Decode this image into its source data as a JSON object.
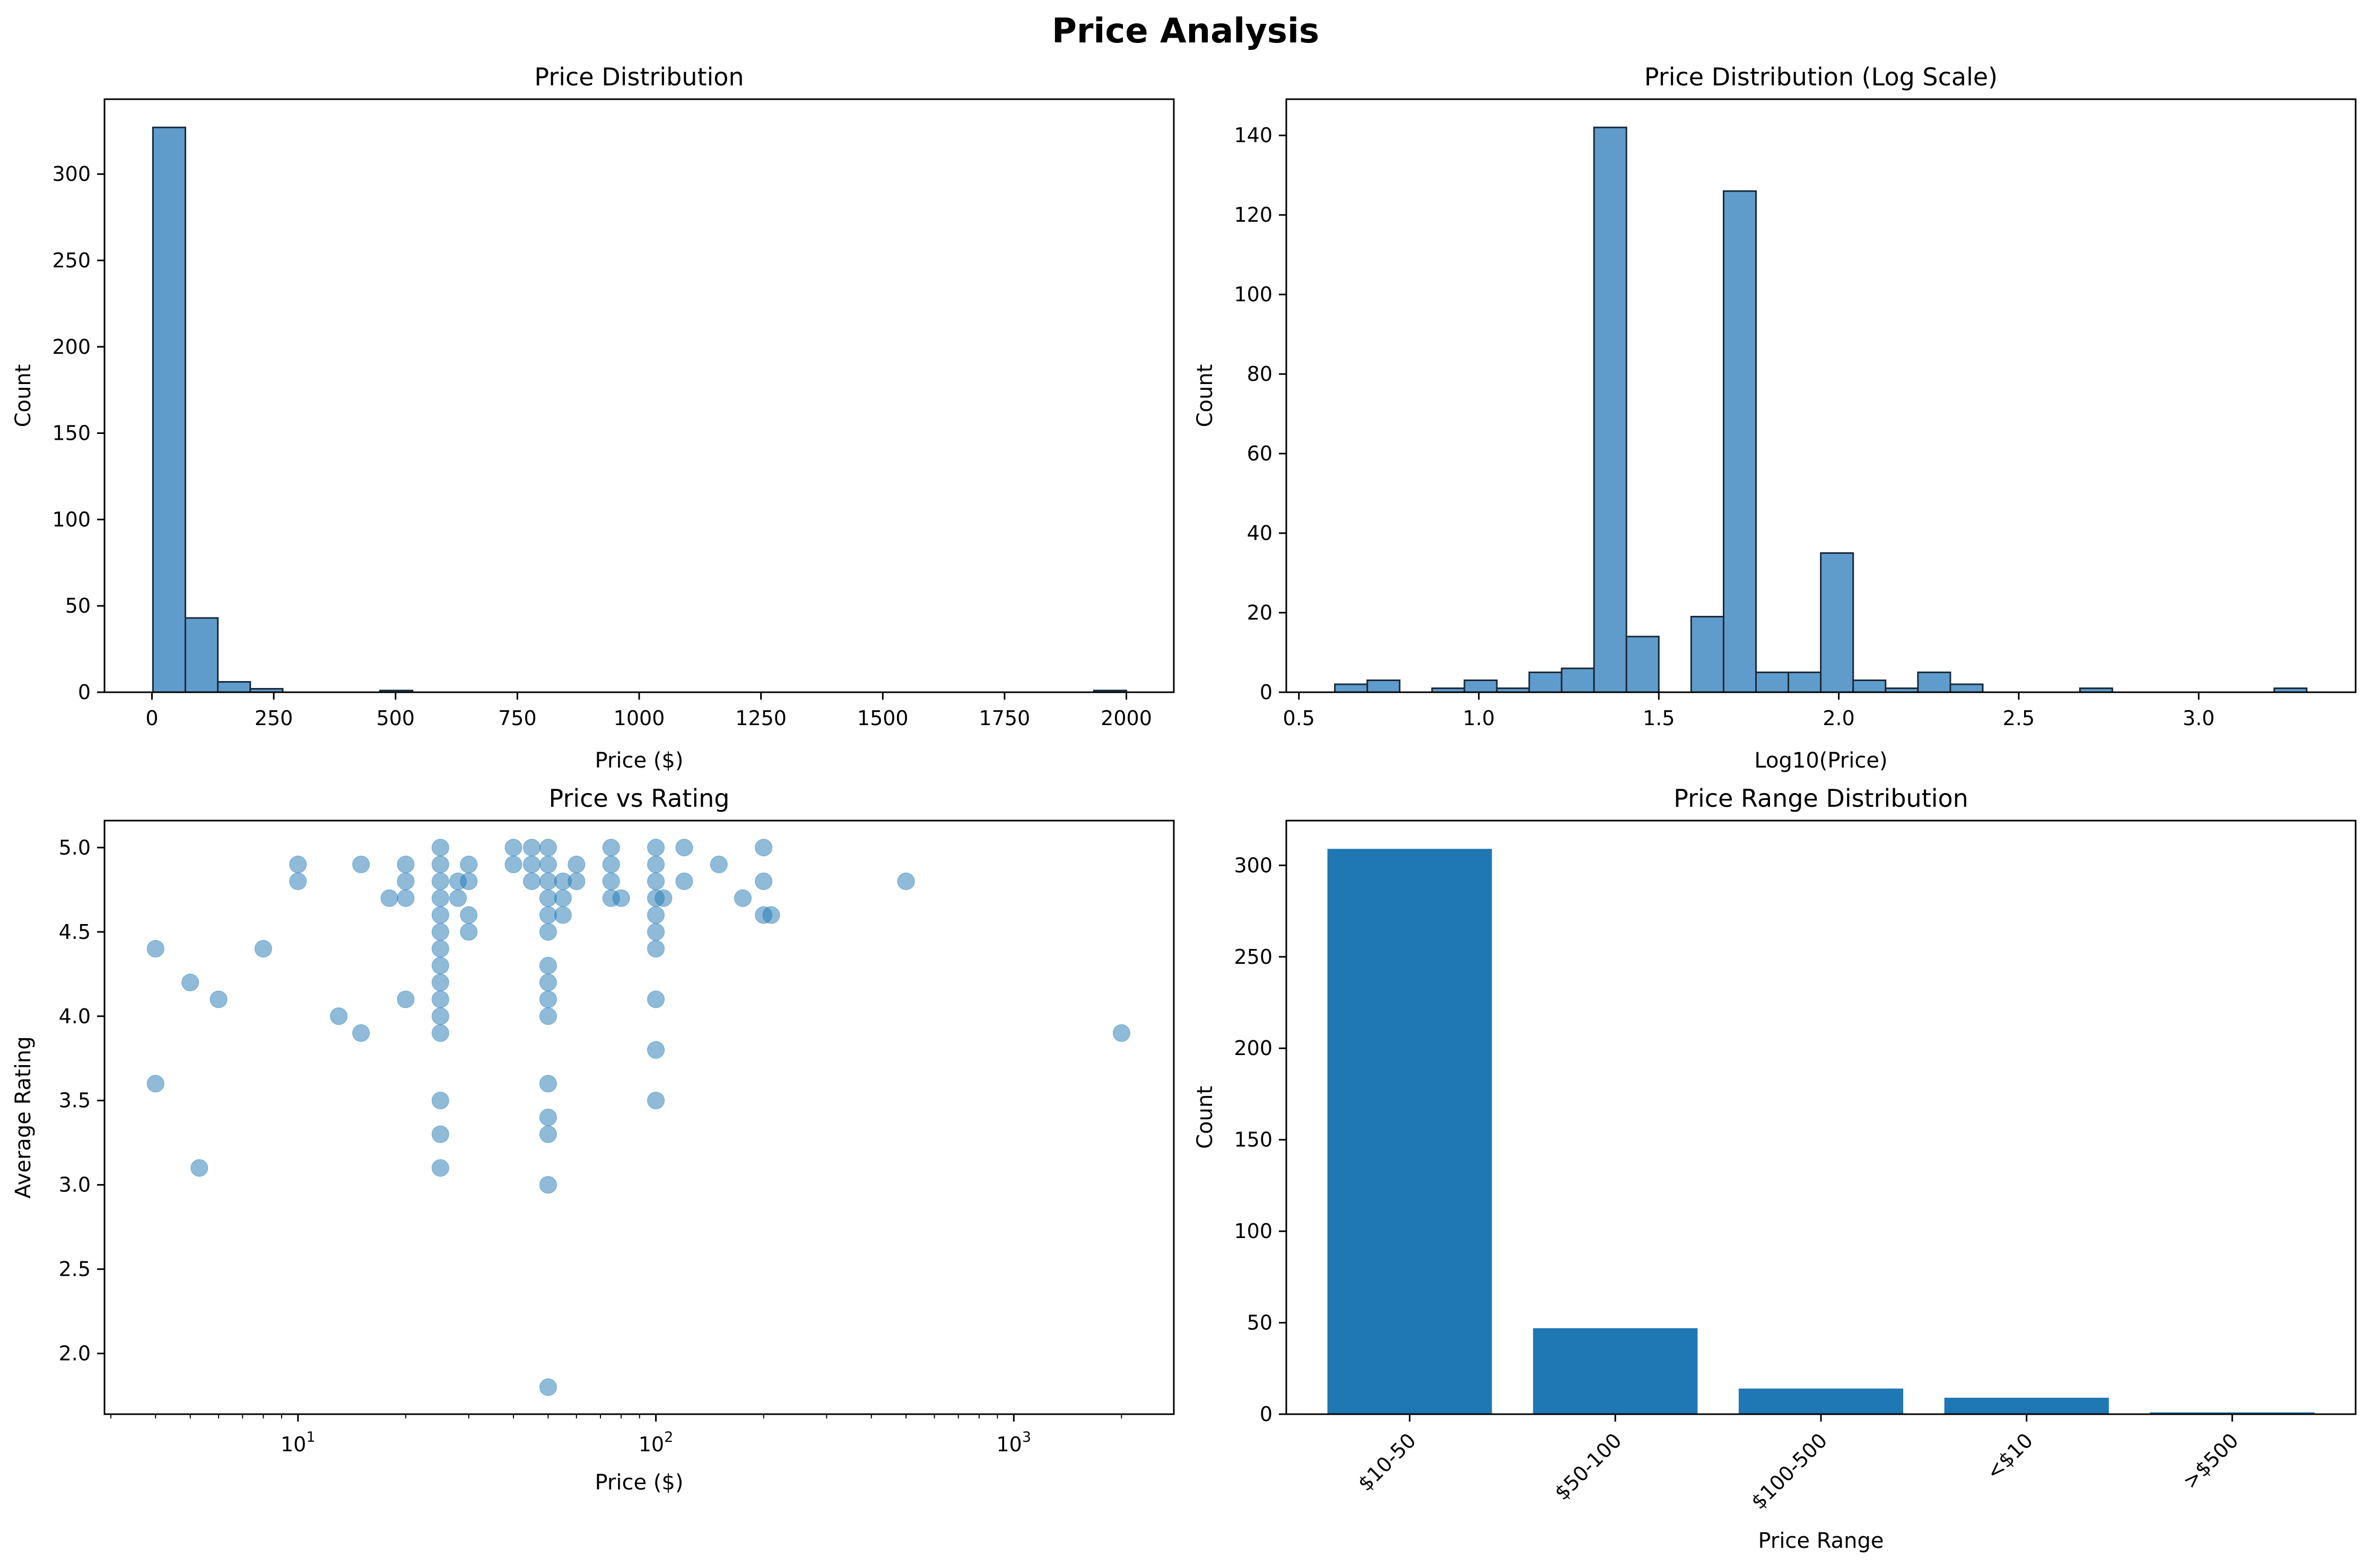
{
  "figure_title": "Price Analysis",
  "colors": {
    "hist_fill": "#5f9ccc",
    "hist_edge": "#1a2a3a",
    "bar_fill": "#1f77b4",
    "scatter": "#1f77b4",
    "axis": "#000000"
  },
  "chart_data": [
    {
      "id": "price-hist",
      "type": "bar",
      "title": "Price Distribution",
      "xlabel": "Price ($)",
      "ylabel": "Count",
      "xlim": [
        -97.4,
        2097.4
      ],
      "ylim": [
        0,
        343.35
      ],
      "xticks": [
        0,
        250,
        500,
        750,
        1000,
        1250,
        1500,
        1750,
        2000
      ],
      "yticks": [
        0,
        50,
        100,
        150,
        200,
        250,
        300
      ],
      "bin_edges": [
        2,
        68.6,
        135.2,
        201.8,
        268.4,
        335,
        401.6,
        468.2,
        534.8,
        601.4,
        668,
        734.6,
        801.2,
        867.8,
        934.4,
        1001,
        1067.6,
        1134.2,
        1200.8,
        1267.4,
        1334,
        1400.6,
        1467.2,
        1533.8,
        1600.4,
        1667,
        1733.6,
        1800.2,
        1866.8,
        1933.4,
        2000
      ],
      "counts": [
        327,
        43,
        6,
        2,
        0,
        0,
        0,
        1,
        0,
        0,
        0,
        0,
        0,
        0,
        0,
        0,
        0,
        0,
        0,
        0,
        0,
        0,
        0,
        0,
        0,
        0,
        0,
        0,
        0,
        1
      ]
    },
    {
      "id": "log-hist",
      "type": "bar",
      "title": "Price Distribution (Log Scale)",
      "xlabel": "Log10(Price)",
      "ylabel": "Count",
      "xlim": [
        0.465,
        3.436
      ],
      "ylim": [
        0,
        149.1
      ],
      "xticks": [
        0.5,
        1.0,
        1.5,
        2.0,
        2.5,
        3.0
      ],
      "xtick_labels": [
        "0.5",
        "1.0",
        "1.5",
        "2.0",
        "2.5",
        "3.0"
      ],
      "yticks": [
        0,
        20,
        40,
        60,
        80,
        100,
        120,
        140
      ],
      "bin_edges": [
        0.6,
        0.69,
        0.78,
        0.87,
        0.96,
        1.05,
        1.14,
        1.23,
        1.32,
        1.41,
        1.5,
        1.59,
        1.68,
        1.77,
        1.86,
        1.95,
        2.04,
        2.13,
        2.22,
        2.31,
        2.4,
        2.49,
        2.58,
        2.67,
        2.76,
        2.85,
        2.94,
        3.03,
        3.12,
        3.21,
        3.3
      ],
      "counts": [
        2,
        3,
        0,
        1,
        3,
        1,
        5,
        6,
        142,
        14,
        0,
        19,
        126,
        5,
        5,
        35,
        3,
        1,
        5,
        2,
        0,
        0,
        0,
        1,
        0,
        0,
        0,
        0,
        0,
        1
      ]
    },
    {
      "id": "scatter",
      "type": "scatter",
      "title": "Price vs Rating",
      "xlabel": "Price ($)",
      "ylabel": "Average Rating",
      "xscale": "log",
      "xlim": [
        2.88,
        2800
      ],
      "ylim": [
        1.64,
        5.16
      ],
      "xticks": [
        10,
        100,
        1000
      ],
      "yticks": [
        2.0,
        2.5,
        3.0,
        3.5,
        4.0,
        4.5,
        5.0
      ],
      "ytick_labels": [
        "2.0",
        "2.5",
        "3.0",
        "3.5",
        "4.0",
        "4.5",
        "5.0"
      ],
      "points": [
        [
          4,
          4.4
        ],
        [
          4,
          3.6
        ],
        [
          5,
          4.2
        ],
        [
          5.3,
          3.1
        ],
        [
          6,
          4.1
        ],
        [
          8,
          4.4
        ],
        [
          10,
          4.9
        ],
        [
          10,
          4.8
        ],
        [
          13,
          4.0
        ],
        [
          15,
          3.9
        ],
        [
          15,
          4.9
        ],
        [
          18,
          4.7
        ],
        [
          20,
          4.9
        ],
        [
          20,
          4.8
        ],
        [
          20,
          4.7
        ],
        [
          20,
          4.1
        ],
        [
          25,
          5.0
        ],
        [
          25,
          4.9
        ],
        [
          25,
          4.8
        ],
        [
          25,
          4.7
        ],
        [
          25,
          4.6
        ],
        [
          25,
          4.5
        ],
        [
          25,
          4.4
        ],
        [
          25,
          4.3
        ],
        [
          25,
          4.2
        ],
        [
          25,
          4.1
        ],
        [
          25,
          4.0
        ],
        [
          25,
          3.9
        ],
        [
          25,
          3.5
        ],
        [
          25,
          3.3
        ],
        [
          25,
          3.1
        ],
        [
          28,
          4.8
        ],
        [
          28,
          4.7
        ],
        [
          30,
          4.9
        ],
        [
          30,
          4.8
        ],
        [
          30,
          4.6
        ],
        [
          30,
          4.5
        ],
        [
          40,
          5.0
        ],
        [
          40,
          4.9
        ],
        [
          45,
          5.0
        ],
        [
          45,
          4.9
        ],
        [
          45,
          4.8
        ],
        [
          50,
          5.0
        ],
        [
          50,
          4.9
        ],
        [
          50,
          4.8
        ],
        [
          50,
          4.7
        ],
        [
          50,
          4.6
        ],
        [
          50,
          4.5
        ],
        [
          50,
          4.3
        ],
        [
          50,
          4.2
        ],
        [
          50,
          4.1
        ],
        [
          50,
          4.0
        ],
        [
          50,
          3.6
        ],
        [
          50,
          3.4
        ],
        [
          50,
          3.3
        ],
        [
          50,
          3.0
        ],
        [
          50,
          1.8
        ],
        [
          55,
          4.8
        ],
        [
          55,
          4.7
        ],
        [
          55,
          4.6
        ],
        [
          60,
          4.9
        ],
        [
          60,
          4.8
        ],
        [
          75,
          5.0
        ],
        [
          75,
          4.9
        ],
        [
          75,
          4.8
        ],
        [
          75,
          4.7
        ],
        [
          80,
          4.7
        ],
        [
          100,
          5.0
        ],
        [
          100,
          4.9
        ],
        [
          100,
          4.8
        ],
        [
          100,
          4.7
        ],
        [
          100,
          4.6
        ],
        [
          100,
          4.5
        ],
        [
          100,
          4.4
        ],
        [
          100,
          4.1
        ],
        [
          100,
          3.8
        ],
        [
          100,
          3.5
        ],
        [
          105,
          4.7
        ],
        [
          120,
          5.0
        ],
        [
          120,
          4.8
        ],
        [
          150,
          4.9
        ],
        [
          175,
          4.7
        ],
        [
          200,
          5.0
        ],
        [
          200,
          4.8
        ],
        [
          200,
          4.6
        ],
        [
          210,
          4.6
        ],
        [
          500,
          4.8
        ],
        [
          2000,
          3.9
        ]
      ]
    },
    {
      "id": "range-bar",
      "type": "bar",
      "title": "Price Range Distribution",
      "xlabel": "Price Range",
      "ylabel": "Count",
      "ylim": [
        0,
        324.45
      ],
      "yticks": [
        0,
        50,
        100,
        150,
        200,
        250,
        300
      ],
      "categories": [
        "$10-50",
        "$50-100",
        "$100-500",
        "<$10",
        ">$500"
      ],
      "values": [
        309,
        47,
        14,
        9,
        1
      ]
    }
  ]
}
